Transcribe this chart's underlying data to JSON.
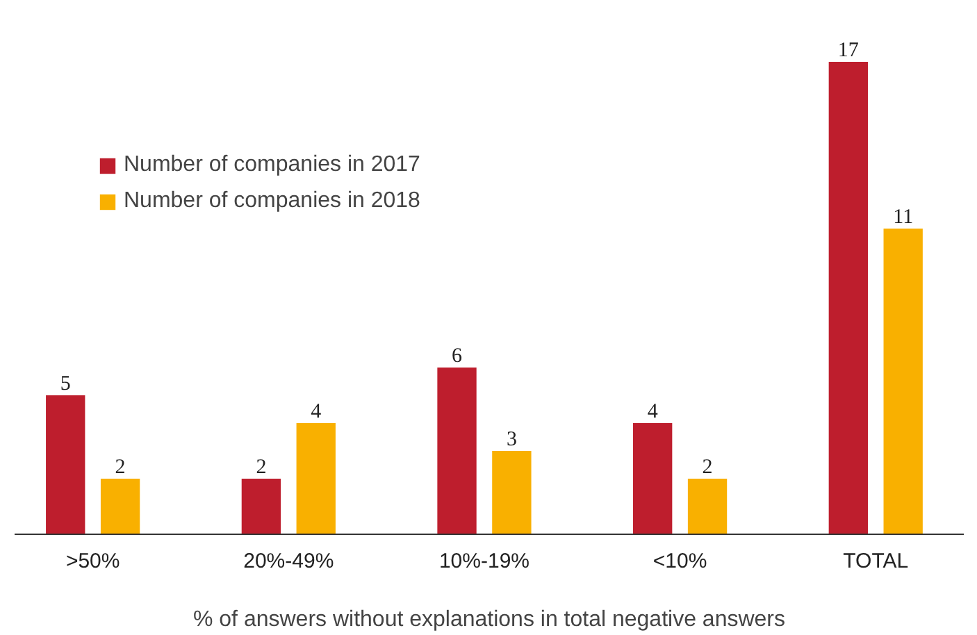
{
  "chart_data": {
    "type": "bar",
    "xlabel": "% of answers without explanations in total negative answers",
    "categories": [
      ">50%",
      "20%-49%",
      "10%-19%",
      "<10%",
      "TOTAL"
    ],
    "series": [
      {
        "name": "Number of companies in 2017",
        "color": "#be1e2d",
        "values": [
          5,
          2,
          6,
          4,
          17
        ]
      },
      {
        "name": "Number of companies in 2018",
        "color": "#f9b000",
        "values": [
          2,
          4,
          3,
          2,
          11
        ]
      }
    ],
    "data_labels": true,
    "legend": "top left",
    "grid": false,
    "tick_labels": "x"
  }
}
